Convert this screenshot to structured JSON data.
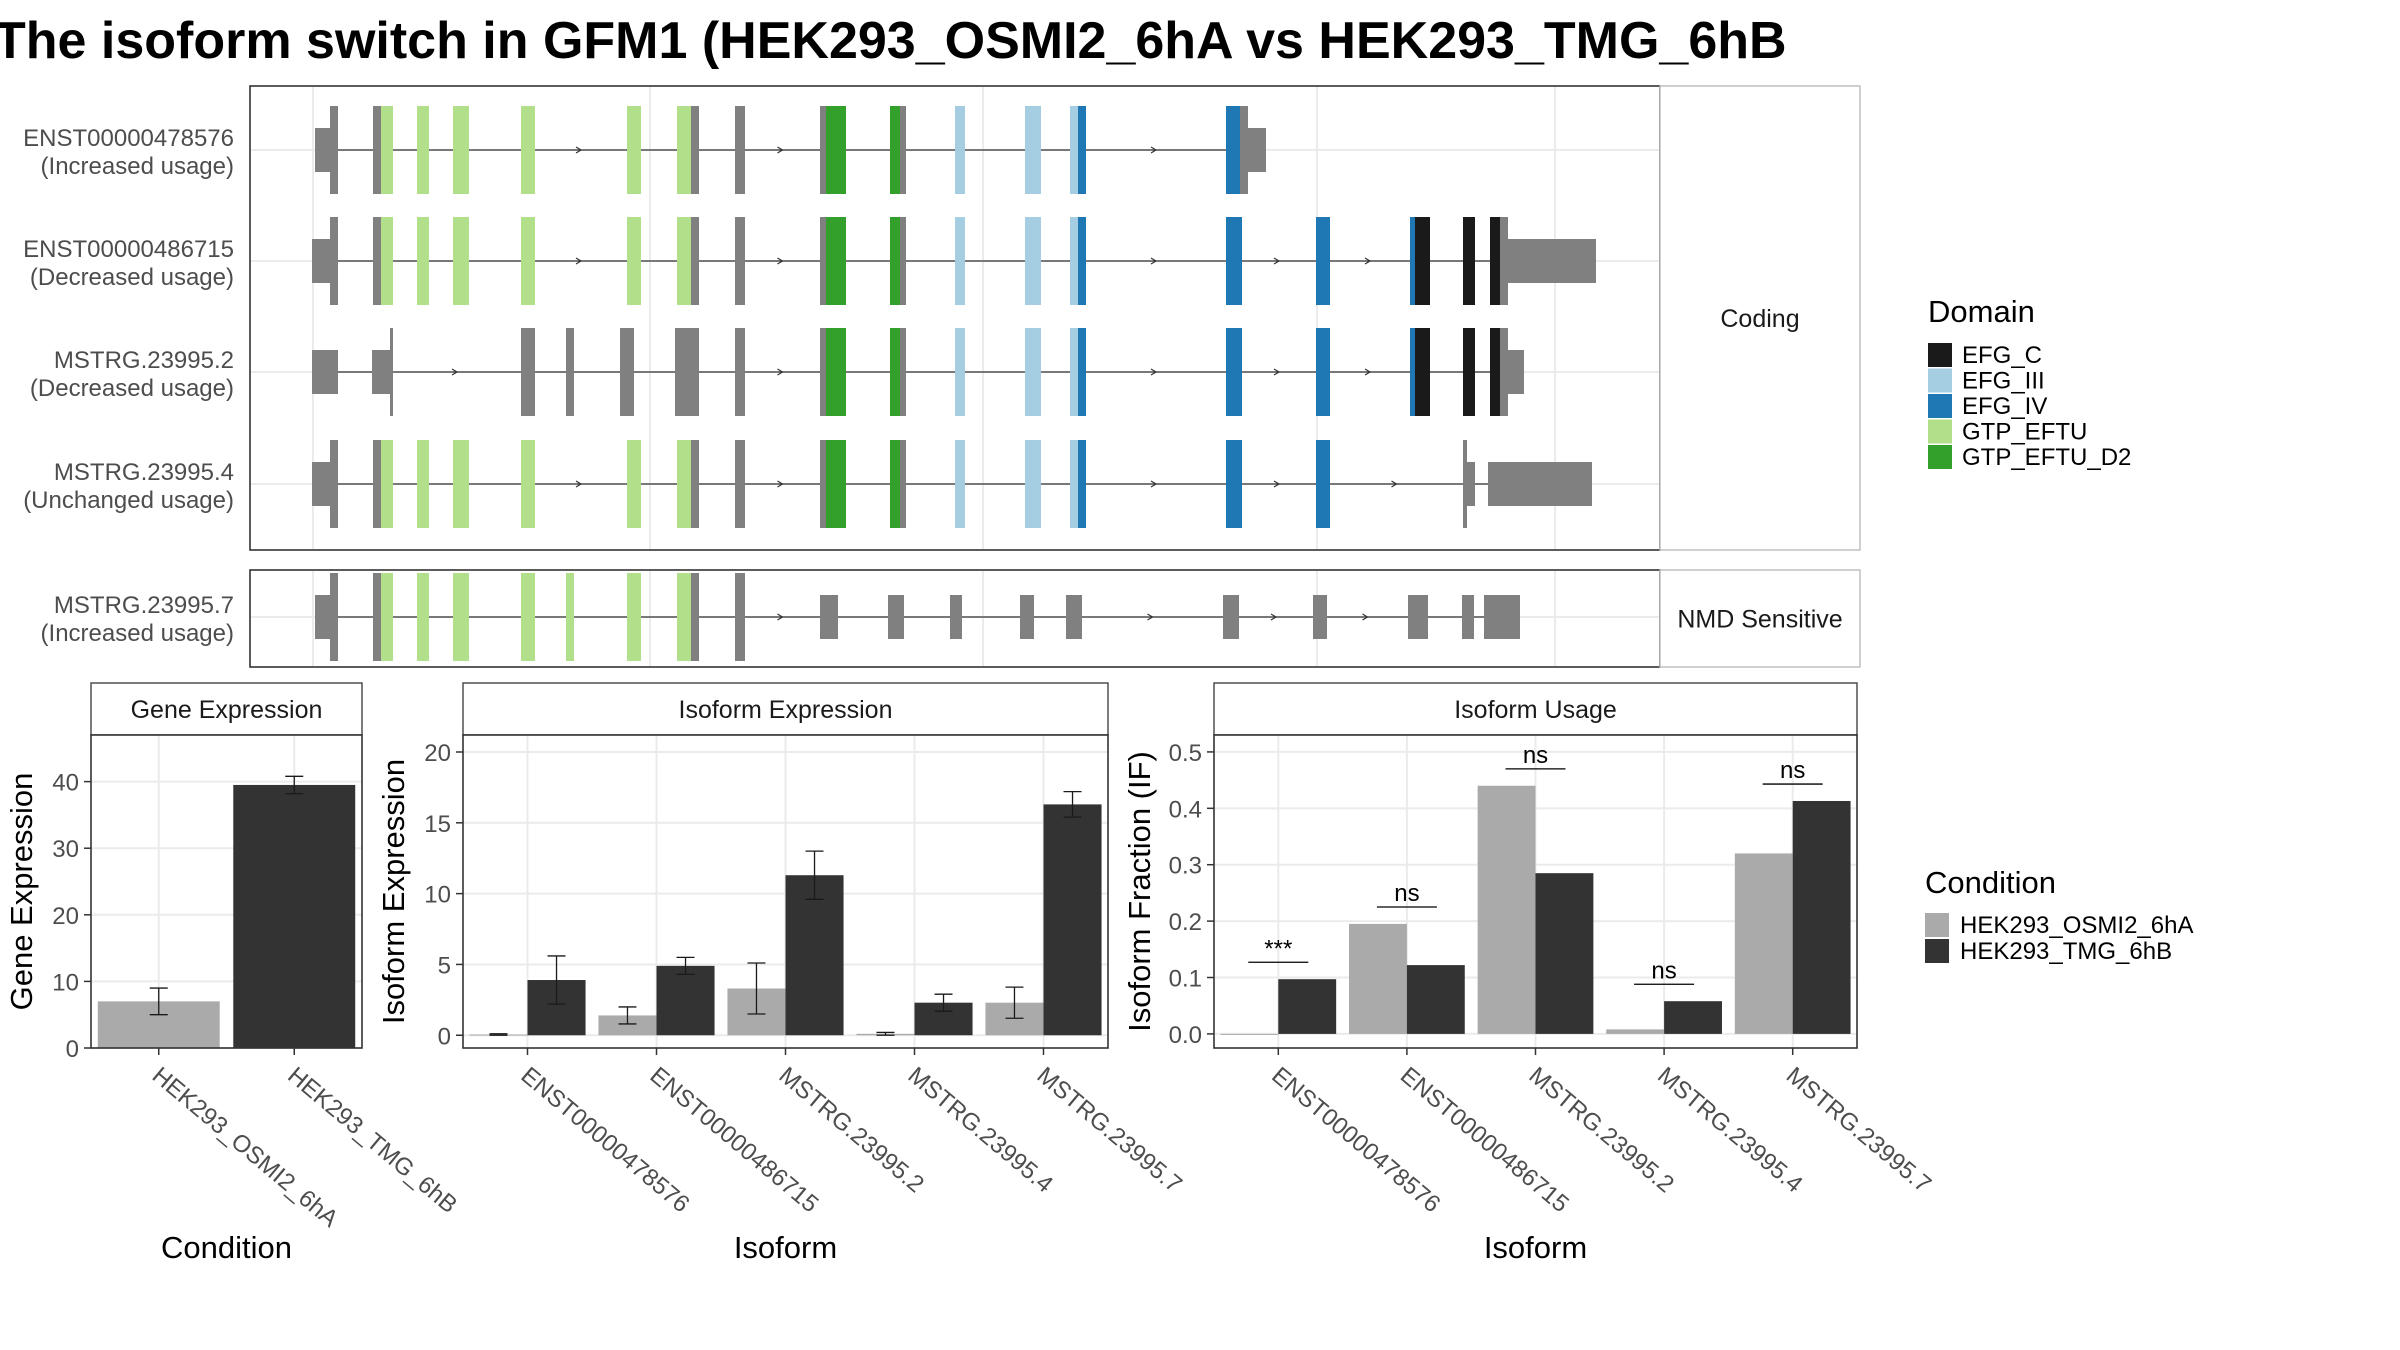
{
  "title": "The isoform switch in GFM1 (HEK293_OSMI2_6hA vs HEK293_TMG_6hB",
  "colors": {
    "exon_plain": "#808080",
    "EFG_C": "#1a1a1a",
    "EFG_III": "#a6cee3",
    "EFG_IV": "#1f78b4",
    "GTP_EFTU": "#b2df8a",
    "GTP_EFTU_D2": "#33a02c",
    "cond1": "#aaaaaa",
    "cond2": "#333333"
  },
  "structure": {
    "strips": [
      "Coding",
      "NMD Sensitive"
    ],
    "domain_legend_title": "Domain",
    "domain_legend": [
      "EFG_C",
      "EFG_III",
      "EFG_IV",
      "GTP_EFTU",
      "GTP_EFTU_D2"
    ],
    "condition_legend_title": "Condition",
    "condition_legend": [
      "HEK293_OSMI2_6hA",
      "HEK293_TMG_6hB"
    ],
    "transcripts": [
      {
        "id": "ENST00000478576",
        "status": "(Increased usage)",
        "group": "Coding"
      },
      {
        "id": "ENST00000486715",
        "status": "(Decreased usage)",
        "group": "Coding"
      },
      {
        "id": "MSTRG.23995.2",
        "status": "(Decreased usage)",
        "group": "Coding"
      },
      {
        "id": "MSTRG.23995.4",
        "status": "(Unchanged usage)",
        "group": "Coding"
      },
      {
        "id": "MSTRG.23995.7",
        "status": "(Increased usage)",
        "group": "NMD Sensitive"
      }
    ]
  },
  "chart_data": [
    {
      "type": "bar",
      "title": "Gene Expression",
      "xlabel": "Condition",
      "ylabel": "Gene Expression",
      "categories": [
        "HEK293_OSMI2_6hA",
        "HEK293_TMG_6hB"
      ],
      "values": [
        7.0,
        39.5
      ],
      "errors": [
        2.0,
        1.3
      ],
      "yticks": [
        "0",
        "10",
        "20",
        "30",
        "40"
      ],
      "ylim": [
        0,
        47
      ]
    },
    {
      "type": "bar",
      "title": "Isoform Expression",
      "xlabel": "Isoform",
      "ylabel": "Isoform Expression",
      "categories": [
        "ENST00000478576",
        "ENST00000486715",
        "MSTRG.23995.2",
        "MSTRG.23995.4",
        "MSTRG.23995.7"
      ],
      "series": [
        {
          "name": "HEK293_OSMI2_6hA",
          "values": [
            0.05,
            1.4,
            3.3,
            0.1,
            2.3
          ],
          "errors": [
            0.05,
            0.6,
            1.8,
            0.1,
            1.1
          ]
        },
        {
          "name": "HEK293_TMG_6hB",
          "values": [
            3.9,
            4.9,
            11.3,
            2.3,
            16.3
          ],
          "errors": [
            1.7,
            0.6,
            1.7,
            0.6,
            0.9
          ]
        }
      ],
      "yticks": [
        "0",
        "5",
        "10",
        "15",
        "20"
      ],
      "ylim": [
        -0.9,
        21.2
      ]
    },
    {
      "type": "bar",
      "title": "Isoform Usage",
      "xlabel": "Isoform",
      "ylabel": "Isoform Fraction (IF)",
      "categories": [
        "ENST00000478576",
        "ENST00000486715",
        "MSTRG.23995.2",
        "MSTRG.23995.4",
        "MSTRG.23995.7"
      ],
      "series": [
        {
          "name": "HEK293_OSMI2_6hA",
          "values": [
            0.0,
            0.195,
            0.44,
            0.008,
            0.32
          ]
        },
        {
          "name": "HEK293_TMG_6hB",
          "values": [
            0.097,
            0.122,
            0.285,
            0.058,
            0.413
          ]
        }
      ],
      "significance": [
        "***",
        "ns",
        "ns",
        "ns",
        "ns"
      ],
      "yticks": [
        "0.0",
        "0.1",
        "0.2",
        "0.3",
        "0.4",
        "0.5"
      ],
      "ylim": [
        -0.025,
        0.53
      ]
    }
  ]
}
